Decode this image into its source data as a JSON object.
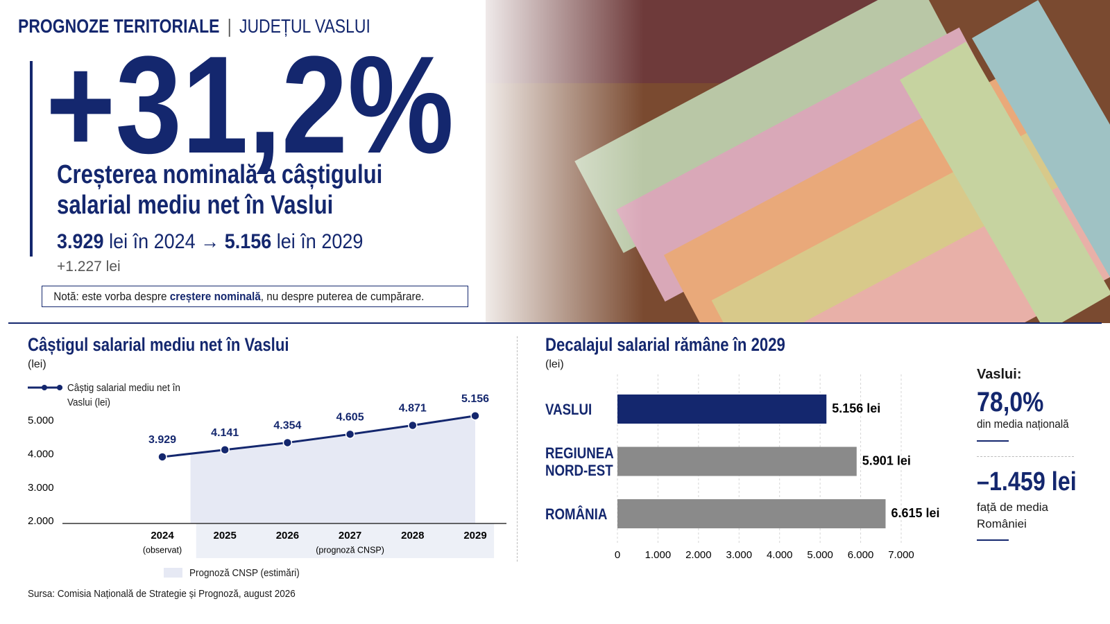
{
  "header": {
    "kicker": "PROGNOZE TERITORIALE",
    "separator": "|",
    "region": "JUDEȚUL VASLUI"
  },
  "hero": {
    "headline": "+31,2%",
    "subtitle": "Creșterea nominală a câștigului salarial mediu net în Vaslui",
    "from_value": "3.929",
    "from_text": "lei în 2024",
    "arrow": "→",
    "to_value": "5.156",
    "to_text": "lei în 2029",
    "difference": "+1.227 lei"
  },
  "note": {
    "lead": "Notă: este vorba despre",
    "emphasis": "creștere nominală",
    "tail": ", nu despre puterea de cumpărare."
  },
  "chart_data": [
    {
      "type": "line",
      "title": "Câștigul salarial mediu net în Vaslui",
      "unit": "(lei)",
      "categories": [
        "2024",
        "2025",
        "2026",
        "2027",
        "2028",
        "2029"
      ],
      "category_notes": [
        "(observat)",
        null,
        null,
        "(prognoză CNSP)",
        null,
        null
      ],
      "series": [
        {
          "name": "Câștig salarial mediu net în Vaslui (lei)",
          "color": "#14276e",
          "values": [
            3929,
            4141,
            4354,
            4605,
            4871,
            5156
          ],
          "value_labels": [
            "3.929",
            "4.141",
            "4.354",
            "4.605",
            "4.871",
            "5.156"
          ]
        }
      ],
      "forecast_label": "Prognoză CNSP (estimări)",
      "forecast_color": "#e6e9f4",
      "ylim": [
        1940,
        6600
      ],
      "yticks": [
        {
          "value": 2000,
          "label": "2.000"
        },
        {
          "value": 3000,
          "label": "3.000"
        },
        {
          "value": 4000,
          "label": "4.000"
        },
        {
          "value": 5000,
          "label": "5.000"
        }
      ],
      "grid": false
    },
    {
      "type": "hbar",
      "title": "Decalajul salarial rămâne în 2029",
      "unit": "(lei)",
      "categories": [
        "VASLUI",
        "REGIUNEA NORD-EST",
        "ROMÂNIA"
      ],
      "values": [
        5156,
        5901,
        6615
      ],
      "value_labels": [
        "5.156 lei",
        "5.901 lei",
        "6.615 lei"
      ],
      "colors": [
        "#14276e",
        "#8a8a8a",
        "#8a8a8a"
      ],
      "xlim": [
        0,
        7000
      ],
      "xticks": [
        0,
        {
          "value": 1000,
          "label": "1.000"
        },
        {
          "value": 2000,
          "label": "2.000"
        },
        {
          "value": 3000,
          "label": "3.000"
        },
        {
          "value": 4000,
          "label": "4.000"
        },
        {
          "value": 5000,
          "label": "5.000"
        },
        {
          "value": 6000,
          "label": "6.000"
        },
        {
          "value": 7000,
          "label": "7.000"
        }
      ],
      "grid": true
    }
  ],
  "side_stats": {
    "label": "Vaslui:",
    "share": "78,0%",
    "share_text": "din media națională",
    "gap": "–1.459 lei",
    "gap_text": "față de media României"
  },
  "source": "Sursa: Comisia Națională de Strategie și Prognoză, august 2026"
}
